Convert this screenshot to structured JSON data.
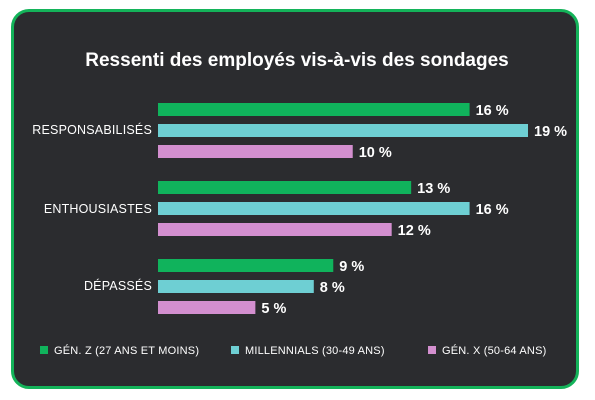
{
  "chart_data": {
    "type": "bar",
    "orientation": "horizontal",
    "title": "Ressenti des employés vis-à-vis des sondages",
    "categories": [
      "RESPONSABILISÉS",
      "ENTHOUSIASTES",
      "DÉPASSÉS"
    ],
    "series": [
      {
        "name": "GÉN. Z (27 ANS ET MOINS)",
        "color": "#10b35c",
        "values": [
          16,
          13,
          9
        ],
        "labels": [
          "16 %",
          "13 %",
          "9 %"
        ]
      },
      {
        "name": "MILLENNIALS (30-49 ANS)",
        "color": "#6ecfd3",
        "values": [
          19,
          16,
          8
        ],
        "labels": [
          "19 %",
          "16 %",
          "8 %"
        ]
      },
      {
        "name": "GÉN. X (50-64 ANS)",
        "color": "#d38fcf",
        "values": [
          10,
          12,
          5
        ],
        "labels": [
          "10 %",
          "12 %",
          "5 %"
        ]
      }
    ],
    "xlim": [
      0,
      19
    ],
    "grid": false,
    "legend": "bottom"
  }
}
